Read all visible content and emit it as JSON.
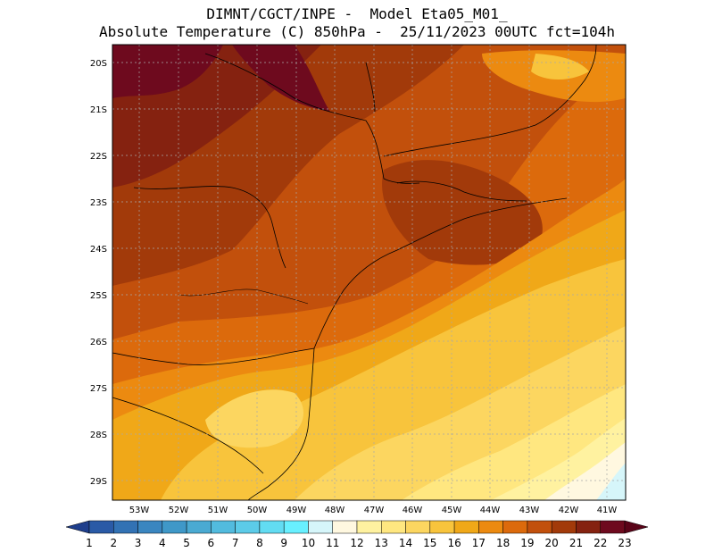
{
  "title": {
    "line1": "DIMNT/CGCT/INPE -  Model Eta05_M01_",
    "line2": "Absolute Temperature (C) 850hPa -  25/11/2023 00UTC fct=104h"
  },
  "map": {
    "lat_labels": [
      "20S",
      "21S",
      "22S",
      "23S",
      "24S",
      "25S",
      "26S",
      "27S",
      "28S",
      "29S"
    ],
    "lon_labels": [
      "53W",
      "52W",
      "51W",
      "50W",
      "49W",
      "48W",
      "47W",
      "46W",
      "45W",
      "44W",
      "43W",
      "42W",
      "41W"
    ]
  },
  "colorbar": {
    "labels": [
      "1",
      "2",
      "3",
      "4",
      "5",
      "6",
      "7",
      "8",
      "9",
      "10",
      "11",
      "12",
      "13",
      "14",
      "15",
      "16",
      "17",
      "18",
      "19",
      "20",
      "21",
      "22",
      "23"
    ],
    "colors": [
      "#1e3e8c",
      "#2a5aa6",
      "#3272b4",
      "#3a86c0",
      "#3f98c8",
      "#4aaad2",
      "#52bbde",
      "#5ccbe8",
      "#62dcf2",
      "#68f0ff",
      "#d6f6fa",
      "#fff8e0",
      "#fff2a0",
      "#ffe780",
      "#fcd660",
      "#f8c43c",
      "#f0a818",
      "#ec8a10",
      "#dc6a0c",
      "#c2500c",
      "#a23a0a",
      "#852210",
      "#6e0a1e",
      "#5a0418"
    ]
  }
}
